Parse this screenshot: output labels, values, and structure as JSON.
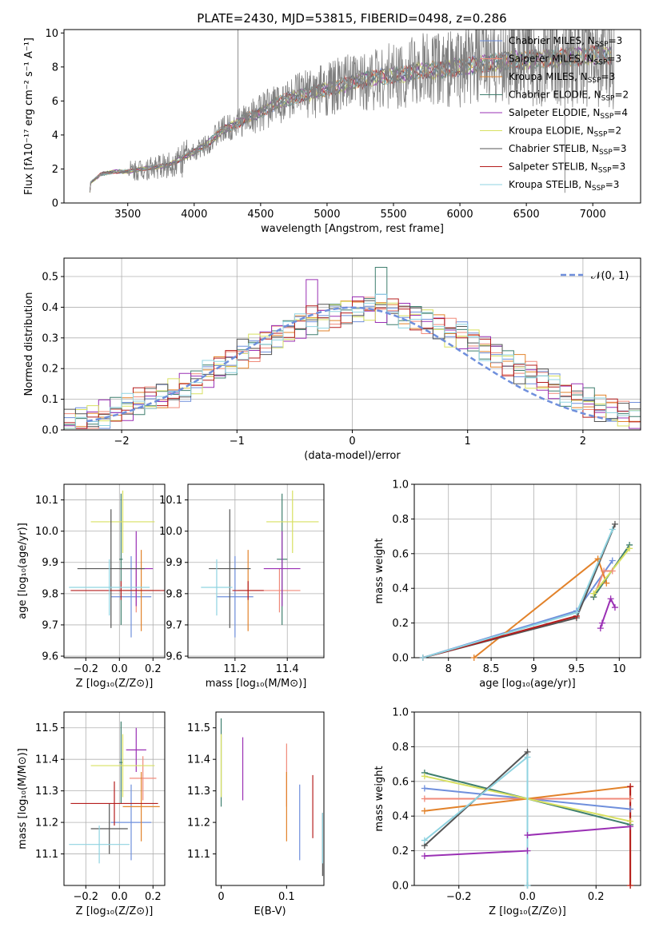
{
  "figure_title": "PLATE=2430, MJD=53815, FIBERID=0498, z=0.286",
  "colors": {
    "chabrier_miles": "#6f8fdc",
    "salpeter_miles": "#f08a7a",
    "kroupa_miles": "#e2822a",
    "chabrier_elodie": "#3f7f6e",
    "salpeter_elodie": "#9a30b4",
    "kroupa_elodie": "#d8e060",
    "chabrier_stelib": "#555555",
    "salpeter_stelib": "#b51d1d",
    "kroupa_stelib": "#8fd3e0",
    "data": "#808080",
    "normal": "#6f8fdc"
  },
  "legend_entries": [
    "Chabrier MILES, N",
    "Salpeter MILES, N",
    "Kroupa MILES, N",
    "Chabrier ELODIE, N",
    "Salpeter ELODIE, N",
    "Kroupa ELODIE, N",
    "Chabrier STELIB, N",
    "Salpeter STELIB, N",
    "Kroupa STELIB, N"
  ],
  "legend_sub": "SSP",
  "legend_vals": [
    "=3",
    "=3",
    "=3",
    "=2",
    "=4",
    "=2",
    "=3",
    "=3",
    "=3"
  ],
  "chart_data": [
    {
      "type": "line",
      "panel": "spectrum",
      "xlabel": "wavelength [Angstrom, rest frame]",
      "ylabel": "Flux [fλ10⁻¹⁷ erg cm⁻² s⁻¹ A⁻¹]",
      "xlim": [
        3020,
        7360
      ],
      "ylim": [
        0,
        10.2
      ],
      "xticks": [
        3500,
        4000,
        4500,
        5000,
        5500,
        6000,
        6500,
        7000
      ],
      "yticks": [
        0,
        2,
        4,
        6,
        8,
        10
      ],
      "data_envelope_x": [
        3210,
        3220,
        3300,
        3400,
        3500,
        3550,
        3600,
        3700,
        3800,
        3900,
        4000,
        4100,
        4200,
        4300,
        4400,
        4500,
        4600,
        4700,
        4800,
        4900,
        5000,
        5100,
        5200,
        5300,
        5400,
        5500,
        5600,
        5700,
        5800,
        5900,
        6000,
        6100,
        6200,
        6300,
        6400,
        6500,
        6600,
        6700,
        6800,
        6900,
        7000,
        7100,
        7160
      ],
      "data_envelope_y": [
        0.1,
        1.2,
        1.7,
        1.85,
        1.85,
        1.9,
        2.0,
        2.1,
        2.2,
        2.6,
        3.0,
        3.5,
        4.2,
        4.6,
        5.0,
        5.3,
        5.8,
        6.1,
        6.3,
        6.5,
        6.7,
        6.9,
        7.1,
        7.3,
        7.4,
        7.5,
        7.6,
        7.8,
        7.8,
        7.9,
        8.0,
        8.1,
        8.2,
        8.3,
        8.4,
        8.4,
        8.5,
        8.5,
        8.6,
        8.6,
        8.7,
        8.7,
        8.7
      ],
      "spikes": [
        {
          "x": 4330,
          "y": 10.5
        },
        {
          "x": 6790,
          "y": 0.6
        },
        {
          "x": 3910,
          "y": 1.5
        }
      ],
      "grid": false,
      "legend": "right"
    },
    {
      "type": "step",
      "panel": "residual_hist",
      "xlabel": "(data-model)/error",
      "ylabel": "Normed distribution",
      "xlim": [
        -2.5,
        2.5
      ],
      "ylim": [
        0,
        0.56
      ],
      "xticks": [
        -2,
        -1,
        0,
        1,
        2
      ],
      "yticks": [
        0,
        0.1,
        0.2,
        0.3,
        0.4,
        0.5
      ],
      "bin_width": 0.1,
      "counts": [
        0.02,
        0.03,
        0.04,
        0.05,
        0.06,
        0.07,
        0.09,
        0.1,
        0.11,
        0.12,
        0.14,
        0.16,
        0.18,
        0.2,
        0.22,
        0.25,
        0.27,
        0.29,
        0.31,
        0.32,
        0.34,
        0.36,
        0.37,
        0.38,
        0.39,
        0.4,
        0.4,
        0.4,
        0.39,
        0.38,
        0.37,
        0.36,
        0.34,
        0.32,
        0.31,
        0.29,
        0.27,
        0.25,
        0.22,
        0.2,
        0.18,
        0.16,
        0.14,
        0.12,
        0.11,
        0.09,
        0.07,
        0.06,
        0.05,
        0.04
      ],
      "legend_label": "𝒩(0, 1)",
      "grid": true
    },
    {
      "type": "errorbar",
      "panel": "age_vs_Z",
      "xlabel": "Z [log₁₀(Z/Z⊙)]",
      "ylabel": "age  [log₁₀(age/yr)]",
      "xlim": [
        -0.33,
        0.27
      ],
      "ylim": [
        9.595,
        10.15
      ],
      "xticks": [
        -0.2,
        0,
        0.2
      ],
      "xtick_labels": [
        "−0.2",
        "0.0",
        "0.2"
      ],
      "yticks": [
        9.6,
        9.7,
        9.8,
        9.9,
        10.0,
        10.1
      ],
      "points": [
        {
          "s": "chabrier_miles",
          "x": 0.07,
          "xe": 0.12,
          "y": 9.79,
          "ye": 0.13
        },
        {
          "s": "salpeter_miles",
          "x": 0.1,
          "xe": 0.1,
          "y": 9.81,
          "ye": 0.07
        },
        {
          "s": "kroupa_miles",
          "x": 0.13,
          "xe": 0.11,
          "y": 9.81,
          "ye": 0.13
        },
        {
          "s": "chabrier_elodie",
          "x": 0.01,
          "xe": 0.01,
          "y": 9.91,
          "ye": 0.21
        },
        {
          "s": "salpeter_elodie",
          "x": 0.1,
          "xe": 0.1,
          "y": 9.88,
          "ye": 0.12
        },
        {
          "s": "kroupa_elodie",
          "x": 0.02,
          "xe": 0.19,
          "y": 10.03,
          "ye": 0.1
        },
        {
          "s": "chabrier_stelib",
          "x": -0.05,
          "xe": 0.2,
          "y": 9.88,
          "ye": 0.19
        },
        {
          "s": "salpeter_stelib",
          "x": 0.01,
          "xe": 0.3,
          "y": 9.81,
          "ye": 0.03
        },
        {
          "s": "kroupa_stelib",
          "x": -0.06,
          "xe": 0.24,
          "y": 9.82,
          "ye": 0.09
        }
      ],
      "grid": true
    },
    {
      "type": "errorbar",
      "panel": "age_vs_mass",
      "xlabel": "mass [log₁₀(M/M⊙)]",
      "ylabel": "",
      "xlim": [
        11.02,
        11.54
      ],
      "ylim": [
        9.595,
        10.15
      ],
      "xticks": [
        11.2,
        11.4
      ],
      "yticks": [
        9.6,
        9.7,
        9.8,
        9.9,
        10.0,
        10.1
      ],
      "points": [
        {
          "s": "chabrier_miles",
          "x": 11.2,
          "xe": 0.07,
          "y": 9.79,
          "ye": 0.13
        },
        {
          "s": "salpeter_miles",
          "x": 11.37,
          "xe": 0.08,
          "y": 9.81,
          "ye": 0.07
        },
        {
          "s": "kroupa_miles",
          "x": 11.25,
          "xe": 0.04,
          "y": 9.81,
          "ye": 0.13
        },
        {
          "s": "chabrier_elodie",
          "x": 11.38,
          "xe": 0.02,
          "y": 9.91,
          "ye": 0.21
        },
        {
          "s": "salpeter_elodie",
          "x": 11.38,
          "xe": 0.07,
          "y": 9.88,
          "ye": 0.12
        },
        {
          "s": "kroupa_elodie",
          "x": 11.42,
          "xe": 0.1,
          "y": 10.03,
          "ye": 0.1
        },
        {
          "s": "chabrier_stelib",
          "x": 11.18,
          "xe": 0.08,
          "y": 9.88,
          "ye": 0.19
        },
        {
          "s": "salpeter_stelib",
          "x": 11.25,
          "xe": 0.06,
          "y": 9.81,
          "ye": 0.03
        },
        {
          "s": "kroupa_stelib",
          "x": 11.13,
          "xe": 0.06,
          "y": 9.82,
          "ye": 0.09
        }
      ],
      "grid": true
    },
    {
      "type": "line",
      "panel": "massweight_vs_age",
      "xlabel": "age  [log₁₀(age/yr)]",
      "ylabel": "mass weight",
      "xlim": [
        7.6,
        10.25
      ],
      "ylim": [
        0,
        1
      ],
      "xticks": [
        8.0,
        8.5,
        9.0,
        9.5,
        10.0
      ],
      "yticks": [
        0,
        0.2,
        0.4,
        0.6,
        0.8,
        1.0
      ],
      "series": [
        {
          "s": "chabrier_miles",
          "x": [
            7.7,
            9.5,
            9.92
          ],
          "y": [
            0.0,
            0.27,
            0.56
          ]
        },
        {
          "s": "salpeter_miles",
          "x": [
            9.7,
            9.82,
            9.92
          ],
          "y": [
            0.35,
            0.5,
            0.5
          ]
        },
        {
          "s": "kroupa_miles",
          "x": [
            8.3,
            9.75,
            9.85
          ],
          "y": [
            0.0,
            0.57,
            0.43
          ]
        },
        {
          "s": "chabrier_elodie",
          "x": [
            9.7,
            10.12
          ],
          "y": [
            0.35,
            0.65
          ]
        },
        {
          "s": "salpeter_elodie",
          "x": [
            9.78,
            9.8,
            9.9,
            9.95
          ],
          "y": [
            0.17,
            0.2,
            0.34,
            0.29
          ]
        },
        {
          "s": "kroupa_elodie",
          "x": [
            9.7,
            10.12
          ],
          "y": [
            0.37,
            0.63
          ]
        },
        {
          "s": "chabrier_stelib",
          "x": [
            7.7,
            9.5,
            9.95
          ],
          "y": [
            0.0,
            0.23,
            0.77
          ]
        },
        {
          "s": "salpeter_stelib",
          "x": [
            7.7,
            9.5
          ],
          "y": [
            0.0,
            0.24
          ]
        },
        {
          "s": "kroupa_stelib",
          "x": [
            7.7,
            9.5,
            9.92
          ],
          "y": [
            0.0,
            0.26,
            0.74
          ]
        }
      ],
      "grid": true
    },
    {
      "type": "errorbar",
      "panel": "mass_vs_Z",
      "xlabel": "Z [log₁₀(Z/Z⊙)]",
      "ylabel": "mass [log₁₀(M/M⊙)]",
      "xlim": [
        -0.33,
        0.27
      ],
      "ylim": [
        11.0,
        11.55
      ],
      "xticks": [
        -0.2,
        0,
        0.2
      ],
      "xtick_labels": [
        "−0.2",
        "0.0",
        "0.2"
      ],
      "yticks": [
        11.1,
        11.2,
        11.3,
        11.4,
        11.5
      ],
      "points": [
        {
          "s": "chabrier_miles",
          "x": 0.07,
          "xe": 0.12,
          "y": 11.2,
          "ye": 0.12
        },
        {
          "s": "salpeter_miles",
          "x": 0.14,
          "xe": 0.08,
          "y": 11.34,
          "ye": 0.07
        },
        {
          "s": "kroupa_miles",
          "x": 0.13,
          "xe": 0.11,
          "y": 11.25,
          "ye": 0.11
        },
        {
          "s": "chabrier_elodie",
          "x": 0.01,
          "xe": 0.01,
          "y": 11.39,
          "ye": 0.13
        },
        {
          "s": "salpeter_elodie",
          "x": 0.1,
          "xe": 0.06,
          "y": 11.43,
          "ye": 0.07
        },
        {
          "s": "kroupa_elodie",
          "x": 0.02,
          "xe": 0.19,
          "y": 11.38,
          "ye": 0.1
        },
        {
          "s": "chabrier_stelib",
          "x": -0.06,
          "xe": 0.11,
          "y": 11.18,
          "ye": 0.08
        },
        {
          "s": "salpeter_stelib",
          "x": -0.03,
          "xe": 0.26,
          "y": 11.26,
          "ye": 0.07
        },
        {
          "s": "kroupa_stelib",
          "x": -0.12,
          "xe": 0.18,
          "y": 11.13,
          "ye": 0.06
        }
      ],
      "grid": true
    },
    {
      "type": "errorbar",
      "panel": "mass_vs_EBV",
      "xlabel": "E(B-V)",
      "ylabel": "",
      "xlim": [
        -0.008,
        0.157
      ],
      "ylim": [
        11.0,
        11.55
      ],
      "xticks": [
        0.0,
        0.1
      ],
      "yticks": [
        11.1,
        11.2,
        11.3,
        11.4,
        11.5
      ],
      "points": [
        {
          "s": "chabrier_miles",
          "x": 0.12,
          "xe": 0,
          "y": 11.2,
          "ye": 0.12
        },
        {
          "s": "salpeter_miles",
          "x": 0.1,
          "xe": 0,
          "y": 11.35,
          "ye": 0.1
        },
        {
          "s": "kroupa_miles",
          "x": 0.1,
          "xe": 0,
          "y": 11.25,
          "ye": 0.11
        },
        {
          "s": "chabrier_elodie",
          "x": 0.0,
          "xe": 0,
          "y": 11.39,
          "ye": 0.14
        },
        {
          "s": "salpeter_elodie",
          "x": 0.033,
          "xe": 0,
          "y": 11.37,
          "ye": 0.1
        },
        {
          "s": "kroupa_elodie",
          "x": 0.0,
          "xe": 0,
          "y": 11.38,
          "ye": 0.1
        },
        {
          "s": "chabrier_stelib",
          "x": 0.155,
          "xe": 0,
          "y": 11.13,
          "ye": 0.1
        },
        {
          "s": "salpeter_stelib",
          "x": 0.14,
          "xe": 0,
          "y": 11.25,
          "ye": 0.1
        },
        {
          "s": "kroupa_stelib",
          "x": 0.155,
          "xe": 0,
          "y": 11.15,
          "ye": 0.08
        }
      ],
      "grid": false
    },
    {
      "type": "line",
      "panel": "massweight_vs_Z",
      "xlabel": "Z [log₁₀(Z/Z⊙)]",
      "ylabel": "mass weight",
      "xlim": [
        -0.33,
        0.33
      ],
      "ylim": [
        0,
        1
      ],
      "xticks": [
        -0.2,
        0.0,
        0.2
      ],
      "xtick_labels": [
        "−0.2",
        "0.0",
        "0.2"
      ],
      "yticks": [
        0,
        0.2,
        0.4,
        0.6,
        0.8,
        1.0
      ],
      "series": [
        {
          "s": "chabrier_miles",
          "x": [
            -0.3,
            0.3
          ],
          "y": [
            0.56,
            0.44
          ]
        },
        {
          "s": "salpeter_miles",
          "x": [
            -0.3,
            0.3
          ],
          "y": [
            0.5,
            0.5
          ]
        },
        {
          "s": "kroupa_miles",
          "x": [
            -0.3,
            0.3,
            0.3
          ],
          "y": [
            0.43,
            0.57,
            0.0
          ]
        },
        {
          "s": "chabrier_elodie",
          "x": [
            -0.3,
            0.3
          ],
          "y": [
            0.65,
            0.35
          ]
        },
        {
          "s": "salpeter_elodie",
          "x": [
            -0.3,
            0.0,
            0.0,
            0.3
          ],
          "y": [
            0.17,
            0.2,
            0.29,
            0.34
          ]
        },
        {
          "s": "kroupa_elodie",
          "x": [
            -0.3,
            0.3
          ],
          "y": [
            0.63,
            0.37
          ]
        },
        {
          "s": "chabrier_stelib",
          "x": [
            -0.3,
            0.0,
            0.0
          ],
          "y": [
            0.23,
            0.77,
            0.0
          ]
        },
        {
          "s": "salpeter_stelib",
          "x": [
            0.3,
            0.3
          ],
          "y": [
            0.0,
            0.57
          ]
        },
        {
          "s": "kroupa_stelib",
          "x": [
            -0.3,
            0.0,
            0.0
          ],
          "y": [
            0.26,
            0.74,
            0.0
          ]
        }
      ],
      "grid": true
    }
  ]
}
